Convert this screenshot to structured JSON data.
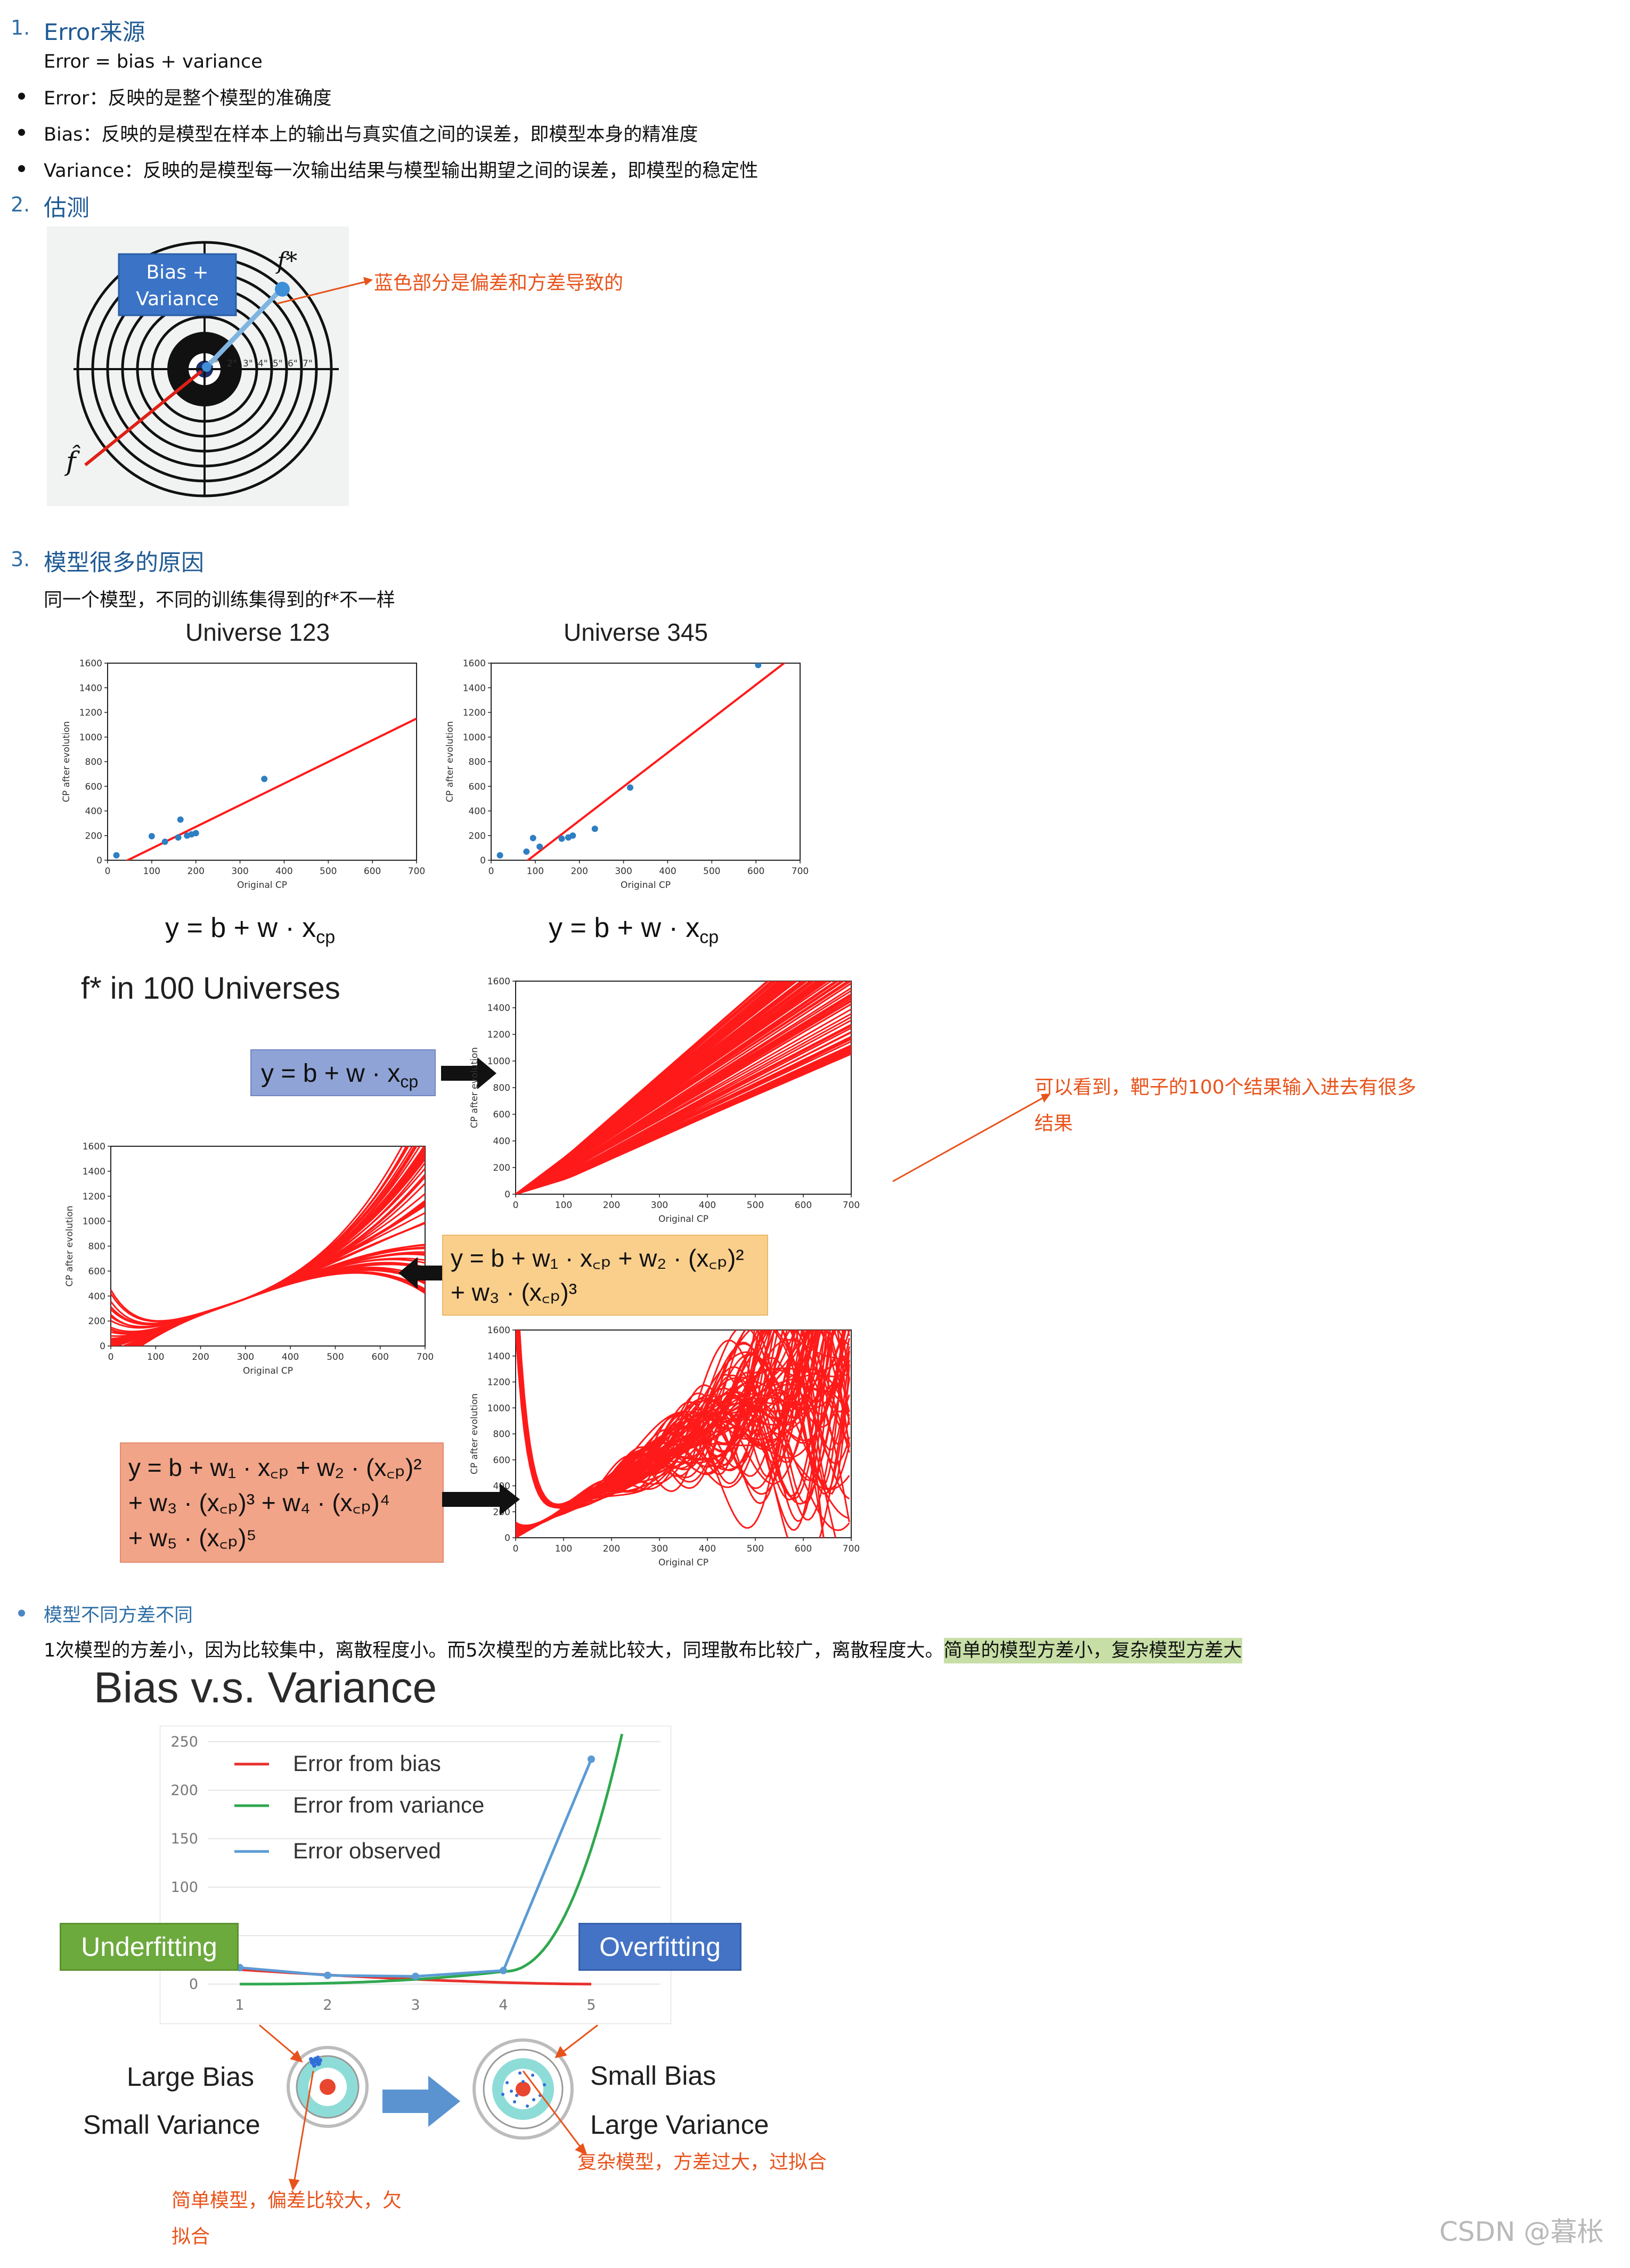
{
  "s1": {
    "num": "1.",
    "title": "Error来源",
    "formula": "Error = bias + variance",
    "bullets": [
      "Error：反映的是整个模型的准确度",
      "Bias：反映的是模型在样本上的输出与真实值之间的误差，即模型本身的精准度",
      "Variance：反映的是模型每一次输出结果与模型输出期望之间的误差，即模型的稳定性"
    ]
  },
  "s2": {
    "num": "2.",
    "title": "估测",
    "bias_variance_label": [
      "Bias +",
      "Variance"
    ],
    "fstar": "f*",
    "fhat": "f̂",
    "ring_labels": [
      "1\"",
      "2\"",
      "3\"",
      "4\"",
      "5\"",
      "6\"",
      "7\""
    ],
    "annotation": "蓝色部分是偏差和方差导致的"
  },
  "s3": {
    "num": "3.",
    "title": "模型很多的原因",
    "subtitle": "同一个模型，不同的训练集得到的f*不一样",
    "universe_a": "Universe 123",
    "universe_b": "Universe 345",
    "eq_linear": "y = b + w · x",
    "eq_sub": "cp",
    "f100": "f* in 100 Universes",
    "eq_cubic_l1": "y = b + w₁ · x꜀ₚ + w₂ · (x꜀ₚ)²",
    "eq_cubic_l2": "+ w₃ · (x꜀ₚ)³",
    "eq_quint_l1": "y = b + w₁ · x꜀ₚ + w₂ · (x꜀ₚ)²",
    "eq_quint_l2": "+ w₃ · (x꜀ₚ)³ + w₄ · (x꜀ₚ)⁴",
    "eq_quint_l3": "+ w₅ · (x꜀ₚ)⁵",
    "annotation_l1": "可以看到，靶子的100个结果输入进去有很多",
    "annotation_l2": "结果",
    "xlabel": "Original CP",
    "ylabel": "CP after evolution",
    "yticks": [
      "0",
      "200",
      "400",
      "600",
      "800",
      "1000",
      "1200",
      "1400",
      "1600"
    ],
    "xticks": [
      "0",
      "100",
      "200",
      "300",
      "400",
      "500",
      "600",
      "700"
    ]
  },
  "s4": {
    "bullet": "模型不同方差不同",
    "text_plain": "1次模型的方差小，因为比较集中，离散程度小。而5次模型的方差就比较大，同理散布比较广，离散程度大。",
    "text_highlight": "简单的模型方差小，复杂模型方差大",
    "chart_title": "Bias v.s. Variance",
    "legend": [
      "Error from bias",
      "Error from variance",
      "Error observed"
    ],
    "underfitting": "Underfitting",
    "overfitting": "Overfitting",
    "large_bias": "Large Bias",
    "small_variance": "Small Variance",
    "small_bias": "Small Bias",
    "large_variance": "Large Variance",
    "anno_left_l1": "简单模型，偏差比较大，欠",
    "anno_left_l2": "拟合",
    "anno_right": "复杂模型，方差过大，过拟合"
  },
  "watermark": "CSDN @暮枨",
  "colors": {
    "heading": "#1f5a94",
    "annotation": "#e8531b",
    "highlight": "#c7dfa6"
  },
  "chart_data": [
    {
      "type": "scatter",
      "title": "Universe 123",
      "xlabel": "Original CP",
      "ylabel": "CP after evolution",
      "xlim": [
        0,
        700
      ],
      "ylim": [
        0,
        1600
      ],
      "points": [
        [
          20,
          40
        ],
        [
          100,
          195
        ],
        [
          130,
          150
        ],
        [
          160,
          185
        ],
        [
          180,
          200
        ],
        [
          190,
          210
        ],
        [
          200,
          220
        ],
        [
          165,
          330
        ],
        [
          355,
          660
        ]
      ],
      "fit_line": [
        [
          0,
          -80
        ],
        [
          700,
          1150
        ]
      ]
    },
    {
      "type": "scatter",
      "title": "Universe 345",
      "xlabel": "Original CP",
      "ylabel": "CP after evolution",
      "xlim": [
        0,
        700
      ],
      "ylim": [
        0,
        1600
      ],
      "points": [
        [
          20,
          40
        ],
        [
          80,
          70
        ],
        [
          95,
          180
        ],
        [
          110,
          110
        ],
        [
          160,
          175
        ],
        [
          175,
          185
        ],
        [
          185,
          200
        ],
        [
          235,
          255
        ],
        [
          315,
          590
        ],
        [
          605,
          1585
        ]
      ],
      "fit_line": [
        [
          0,
          -230
        ],
        [
          700,
          1700
        ]
      ]
    },
    {
      "type": "line",
      "title": "Bias v.s. Variance",
      "categories": [
        1,
        2,
        3,
        4,
        5
      ],
      "ylim": [
        0,
        250
      ],
      "yticks": [
        0,
        50,
        100,
        150,
        200,
        250
      ],
      "series": [
        {
          "name": "Error from bias",
          "values": [
            15,
            8,
            4,
            2,
            0
          ]
        },
        {
          "name": "Error from variance",
          "values": [
            0,
            2,
            5,
            13,
            258
          ]
        },
        {
          "name": "Error observed",
          "values": [
            17,
            9,
            8,
            14,
            232
          ]
        }
      ]
    }
  ]
}
